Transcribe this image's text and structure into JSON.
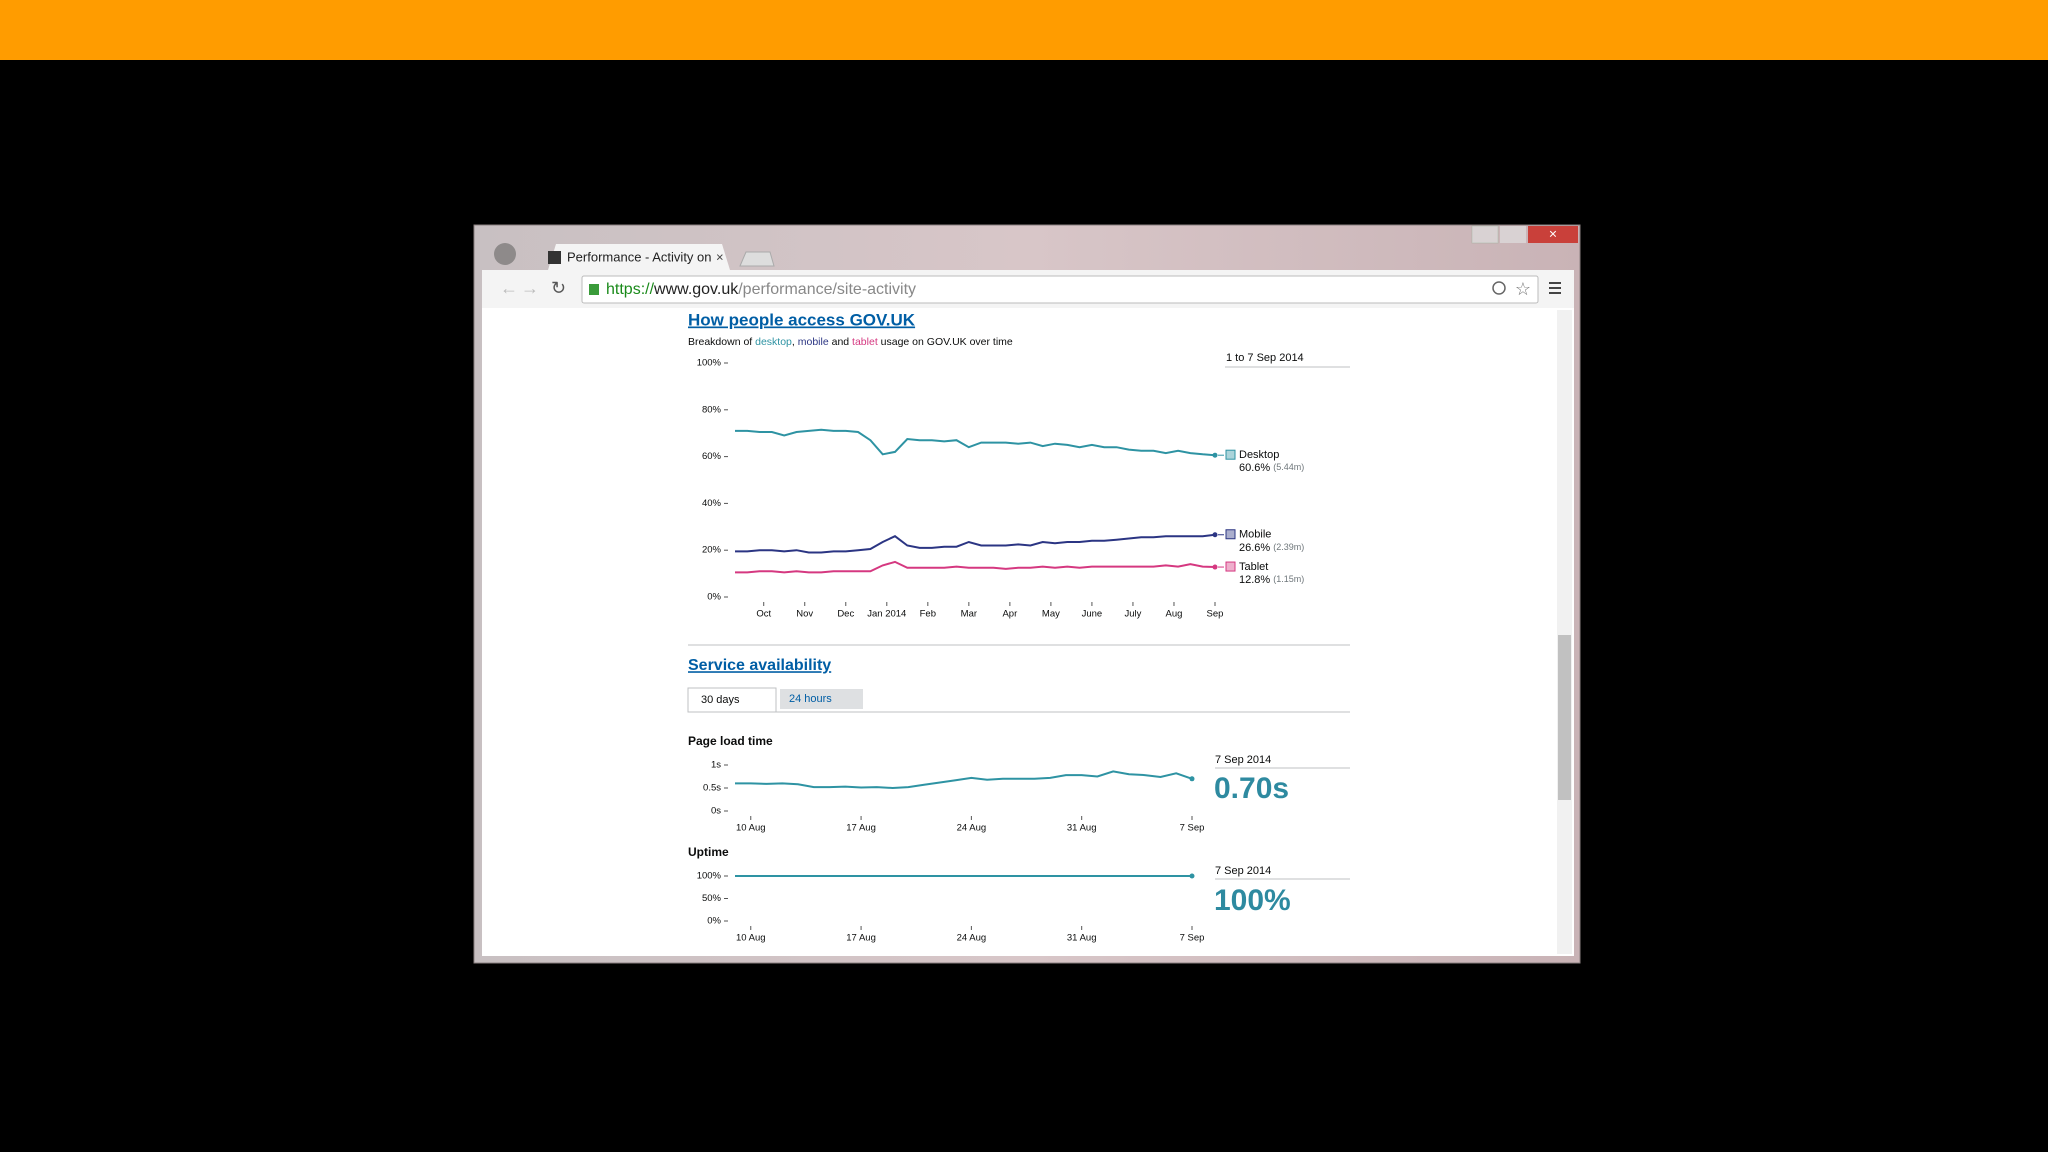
{
  "browser": {
    "tab_title": "Performance - Activity on",
    "url_scheme": "https://",
    "url_host": "www.gov.uk",
    "url_path": "/performance/site-activity"
  },
  "access": {
    "title": "How people access GOV.UK",
    "subtitle_parts": [
      "Breakdown of ",
      "desktop",
      ", ",
      "mobile",
      " and ",
      "tablet",
      " usage on GOV.UK over time"
    ],
    "date_range": "1 to 7 Sep 2014",
    "chart": {
      "type": "line",
      "x": [
        0.3,
        0.6,
        0.9,
        1.2,
        1.5,
        1.8,
        2.1,
        2.4,
        2.7,
        3.0,
        3.3,
        3.6,
        3.9,
        4.2,
        4.5,
        4.8,
        5.1,
        5.4,
        5.7,
        6.0,
        6.3,
        6.6,
        6.9,
        7.2,
        7.5,
        7.8,
        8.1,
        8.4,
        8.7,
        9.0,
        9.3,
        9.6,
        9.9,
        10.2,
        10.5,
        10.8,
        11.1,
        11.4,
        11.7,
        12.0
      ],
      "xlim": [
        0.3,
        12.0
      ],
      "xticks": [
        {
          "value": 1,
          "label": "Oct"
        },
        {
          "value": 2,
          "label": "Nov"
        },
        {
          "value": 3,
          "label": "Dec"
        },
        {
          "value": 4,
          "label": "Jan 2014"
        },
        {
          "value": 5,
          "label": "Feb"
        },
        {
          "value": 6,
          "label": "Mar"
        },
        {
          "value": 7,
          "label": "Apr"
        },
        {
          "value": 8,
          "label": "May"
        },
        {
          "value": 9,
          "label": "June"
        },
        {
          "value": 10,
          "label": "July"
        },
        {
          "value": 11,
          "label": "Aug"
        },
        {
          "value": 12,
          "label": "Sep"
        }
      ],
      "ylim": [
        0,
        100
      ],
      "yticks": [
        {
          "value": 0,
          "label": "0%"
        },
        {
          "value": 20,
          "label": "20%"
        },
        {
          "value": 40,
          "label": "40%"
        },
        {
          "value": 60,
          "label": "60%"
        },
        {
          "value": 80,
          "label": "80%"
        },
        {
          "value": 100,
          "label": "100%"
        }
      ],
      "series": [
        {
          "name": "Desktop",
          "color": "#2e93a3",
          "share": "60.6%",
          "count": "(5.44m)",
          "values": [
            71,
            71,
            70.5,
            70.5,
            69,
            70.5,
            71,
            71.5,
            71,
            71,
            70.5,
            67,
            61,
            62,
            67.5,
            67,
            67,
            66.5,
            67,
            64,
            66,
            66,
            66,
            65.5,
            66,
            64.5,
            65.5,
            65,
            64,
            65,
            64,
            64,
            63,
            62.5,
            62.5,
            61.5,
            62.5,
            61.5,
            61,
            60.6
          ]
        },
        {
          "name": "Mobile",
          "color": "#2b3583",
          "share": "26.6%",
          "count": "(2.39m)",
          "values": [
            19.5,
            19.5,
            20,
            20,
            19.5,
            20,
            19,
            19,
            19.5,
            19.5,
            20,
            20.5,
            23.5,
            26,
            22,
            21,
            21,
            21.5,
            21.5,
            23.5,
            22,
            22,
            22,
            22.5,
            22,
            23.5,
            23,
            23.5,
            23.5,
            24,
            24,
            24.5,
            25,
            25.5,
            25.5,
            26,
            26,
            26,
            26,
            26.6
          ]
        },
        {
          "name": "Tablet",
          "color": "#d53880",
          "share": "12.8%",
          "count": "(1.15m)",
          "values": [
            10.5,
            10.5,
            11,
            11,
            10.5,
            11,
            10.5,
            10.5,
            11,
            11,
            11,
            11,
            13.5,
            15,
            12.5,
            12.5,
            12.5,
            12.5,
            13,
            12.5,
            12.5,
            12.5,
            12,
            12.5,
            12.5,
            13,
            12.5,
            13,
            12.5,
            13,
            13,
            13,
            13,
            13,
            13,
            13.5,
            13,
            14,
            13,
            12.8
          ]
        }
      ]
    }
  },
  "availability": {
    "title": "Service availability",
    "tabs": [
      "30 days",
      "24 hours"
    ],
    "panels": [
      {
        "title": "Page load time",
        "date": "7 Sep 2014",
        "latest": "0.70s",
        "chart": {
          "type": "line",
          "color": "#2e93a3",
          "x": [
            9,
            10,
            11,
            12,
            13,
            14,
            15,
            16,
            17,
            18,
            19,
            20,
            21,
            22,
            23,
            24,
            25,
            26,
            27,
            28,
            29,
            30,
            31,
            32,
            33,
            34,
            35,
            36,
            37,
            38
          ],
          "values": [
            0.6,
            0.6,
            0.59,
            0.6,
            0.58,
            0.52,
            0.52,
            0.53,
            0.51,
            0.52,
            0.5,
            0.52,
            0.57,
            0.62,
            0.67,
            0.72,
            0.68,
            0.7,
            0.7,
            0.7,
            0.72,
            0.78,
            0.78,
            0.75,
            0.86,
            0.8,
            0.78,
            0.74,
            0.82,
            0.7
          ],
          "xlim": [
            9,
            38
          ],
          "xticks": [
            {
              "value": 10,
              "label": "10 Aug"
            },
            {
              "value": 17,
              "label": "17 Aug"
            },
            {
              "value": 24,
              "label": "24 Aug"
            },
            {
              "value": 31,
              "label": "31 Aug"
            },
            {
              "value": 38,
              "label": "7 Sep"
            }
          ],
          "ylim": [
            0,
            1
          ],
          "yticks": [
            {
              "value": 0,
              "label": "0s"
            },
            {
              "value": 0.5,
              "label": "0.5s"
            },
            {
              "value": 1,
              "label": "1s"
            }
          ]
        }
      },
      {
        "title": "Uptime",
        "date": "7 Sep 2014",
        "latest": "100%",
        "chart": {
          "type": "line",
          "color": "#2e93a3",
          "x": [
            9,
            10,
            11,
            12,
            13,
            14,
            15,
            16,
            17,
            18,
            19,
            20,
            21,
            22,
            23,
            24,
            25,
            26,
            27,
            28,
            29,
            30,
            31,
            32,
            33,
            34,
            35,
            36,
            37,
            38
          ],
          "values": [
            100,
            100,
            100,
            100,
            100,
            100,
            100,
            100,
            100,
            100,
            100,
            100,
            100,
            100,
            100,
            100,
            100,
            100,
            100,
            100,
            100,
            100,
            100,
            100,
            100,
            100,
            100,
            100,
            100,
            100
          ],
          "xlim": [
            9,
            38
          ],
          "xticks": [
            {
              "value": 10,
              "label": "10 Aug"
            },
            {
              "value": 17,
              "label": "17 Aug"
            },
            {
              "value": 24,
              "label": "24 Aug"
            },
            {
              "value": 31,
              "label": "31 Aug"
            },
            {
              "value": 38,
              "label": "7 Sep"
            }
          ],
          "ylim": [
            0,
            100
          ],
          "yticks": [
            {
              "value": 0,
              "label": "0%"
            },
            {
              "value": 50,
              "label": "50%"
            },
            {
              "value": 100,
              "label": "100%"
            }
          ]
        }
      }
    ]
  }
}
